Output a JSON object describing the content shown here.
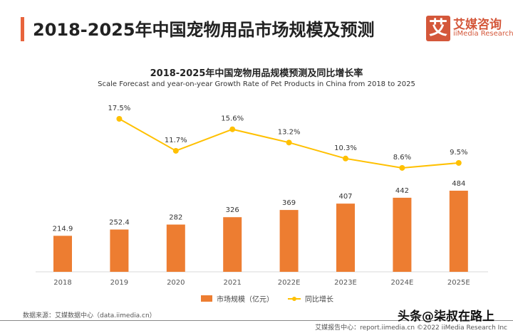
{
  "header": {
    "title": "2018-2025年中国宠物用品市场规模及预测",
    "logo_cn": "艾媒咨询",
    "logo_en": "iiMedia Research",
    "logo_mark": "艾"
  },
  "chart_data": {
    "type": "bar+line",
    "title": "2018-2025年中国宠物用品规模预测及同比增长率",
    "subtitle": "Scale Forecast and year-on-year Growth Rate of Pet Products in China from 2018 to 2025",
    "categories": [
      "2018",
      "2019",
      "2020",
      "2021",
      "2022E",
      "2023E",
      "2024E",
      "2025E"
    ],
    "series": [
      {
        "name": "市场规模（亿元）",
        "type": "bar",
        "color": "#ED7D31",
        "values": [
          214.9,
          252.4,
          282,
          326,
          369,
          407,
          442,
          484
        ],
        "labels": [
          "214.9",
          "252.4",
          "282",
          "326",
          "369",
          "407",
          "442",
          "484"
        ]
      },
      {
        "name": "同比增长",
        "type": "line",
        "color": "#FFC000",
        "values": [
          null,
          17.5,
          11.7,
          15.6,
          13.2,
          10.3,
          8.6,
          9.5
        ],
        "labels": [
          "",
          "17.5%",
          "11.7%",
          "15.6%",
          "13.2%",
          "10.3%",
          "8.6%",
          "9.5%"
        ]
      }
    ],
    "legend": "bottom",
    "grid": false
  },
  "footer": {
    "source": "数据来源：艾媒数据中心（data.iimedia.cn）",
    "report": "艾媒报告中心：report.iimedia.cn  ©2022  iiMedia Research Inc",
    "watermark": "头条@柒叔在路上"
  }
}
